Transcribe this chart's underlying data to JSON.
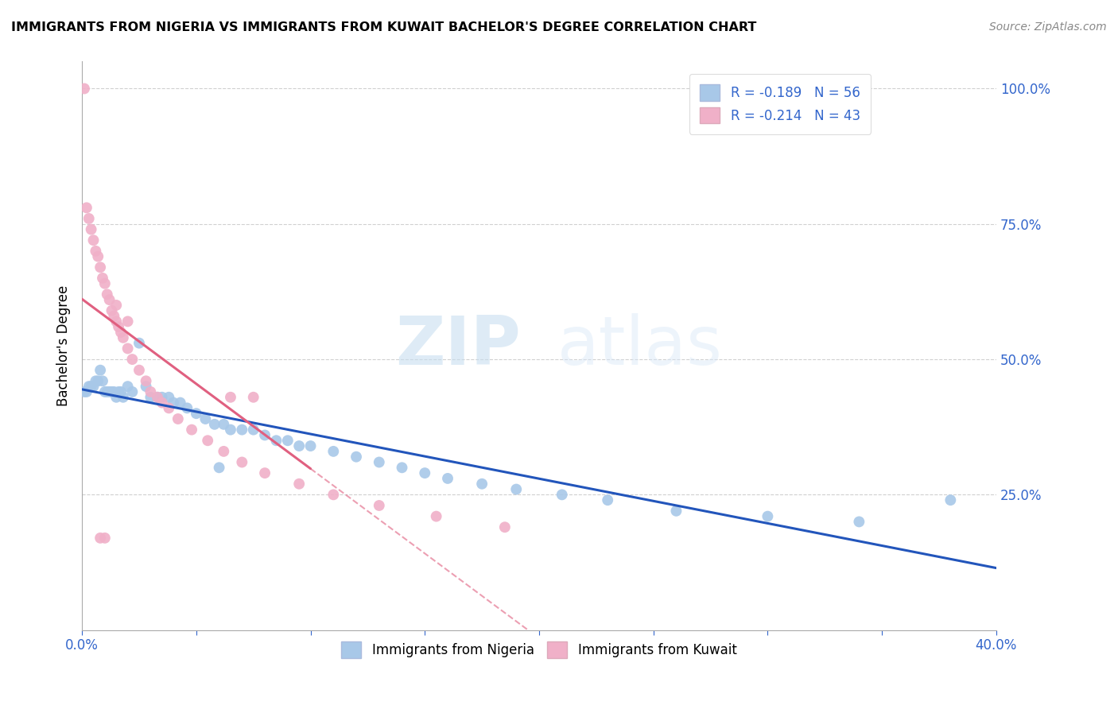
{
  "title": "IMMIGRANTS FROM NIGERIA VS IMMIGRANTS FROM KUWAIT BACHELOR'S DEGREE CORRELATION CHART",
  "source": "Source: ZipAtlas.com",
  "ylabel": "Bachelor's Degree",
  "watermark_zip": "ZIP",
  "watermark_atlas": "atlas",
  "nigeria_color": "#a8c8e8",
  "kuwait_color": "#f0b0c8",
  "nigeria_line_color": "#2255bb",
  "kuwait_line_color": "#e06080",
  "nigeria_line_color2": "#2255bb",
  "kuwait_dashed_color": "#f0b0c8",
  "legend_r_nigeria": "-0.189",
  "legend_n_nigeria": "56",
  "legend_r_kuwait": "-0.214",
  "legend_n_kuwait": "43",
  "xlim": [
    0.0,
    0.4
  ],
  "ylim": [
    0.0,
    1.05
  ],
  "right_ytick_vals": [
    1.0,
    0.75,
    0.5,
    0.25
  ],
  "right_yticks": [
    "100.0%",
    "75.0%",
    "50.0%",
    "25.0%"
  ],
  "nigeria_x": [
    0.001,
    0.002,
    0.003,
    0.004,
    0.005,
    0.006,
    0.007,
    0.008,
    0.009,
    0.01,
    0.011,
    0.012,
    0.013,
    0.014,
    0.015,
    0.016,
    0.017,
    0.018,
    0.02,
    0.022,
    0.025,
    0.028,
    0.03,
    0.033,
    0.035,
    0.038,
    0.04,
    0.043,
    0.046,
    0.05,
    0.054,
    0.058,
    0.062,
    0.065,
    0.07,
    0.075,
    0.08,
    0.085,
    0.09,
    0.095,
    0.1,
    0.11,
    0.12,
    0.13,
    0.14,
    0.15,
    0.16,
    0.175,
    0.19,
    0.21,
    0.23,
    0.26,
    0.3,
    0.34,
    0.38,
    0.06
  ],
  "nigeria_y": [
    0.44,
    0.44,
    0.45,
    0.45,
    0.45,
    0.46,
    0.46,
    0.48,
    0.46,
    0.44,
    0.44,
    0.44,
    0.44,
    0.44,
    0.43,
    0.44,
    0.44,
    0.43,
    0.45,
    0.44,
    0.53,
    0.45,
    0.43,
    0.43,
    0.43,
    0.43,
    0.42,
    0.42,
    0.41,
    0.4,
    0.39,
    0.38,
    0.38,
    0.37,
    0.37,
    0.37,
    0.36,
    0.35,
    0.35,
    0.34,
    0.34,
    0.33,
    0.32,
    0.31,
    0.3,
    0.29,
    0.28,
    0.27,
    0.26,
    0.25,
    0.24,
    0.22,
    0.21,
    0.2,
    0.24,
    0.3
  ],
  "kuwait_x": [
    0.001,
    0.002,
    0.003,
    0.004,
    0.005,
    0.006,
    0.007,
    0.008,
    0.009,
    0.01,
    0.011,
    0.012,
    0.013,
    0.014,
    0.015,
    0.016,
    0.017,
    0.018,
    0.02,
    0.022,
    0.025,
    0.028,
    0.03,
    0.033,
    0.035,
    0.038,
    0.042,
    0.048,
    0.055,
    0.062,
    0.07,
    0.08,
    0.095,
    0.11,
    0.13,
    0.155,
    0.185,
    0.065,
    0.075,
    0.015,
    0.02,
    0.01,
    0.008
  ],
  "kuwait_y": [
    1.0,
    0.78,
    0.76,
    0.74,
    0.72,
    0.7,
    0.69,
    0.67,
    0.65,
    0.64,
    0.62,
    0.61,
    0.59,
    0.58,
    0.57,
    0.56,
    0.55,
    0.54,
    0.52,
    0.5,
    0.48,
    0.46,
    0.44,
    0.43,
    0.42,
    0.41,
    0.39,
    0.37,
    0.35,
    0.33,
    0.31,
    0.29,
    0.27,
    0.25,
    0.23,
    0.21,
    0.19,
    0.43,
    0.43,
    0.6,
    0.57,
    0.17,
    0.17
  ]
}
